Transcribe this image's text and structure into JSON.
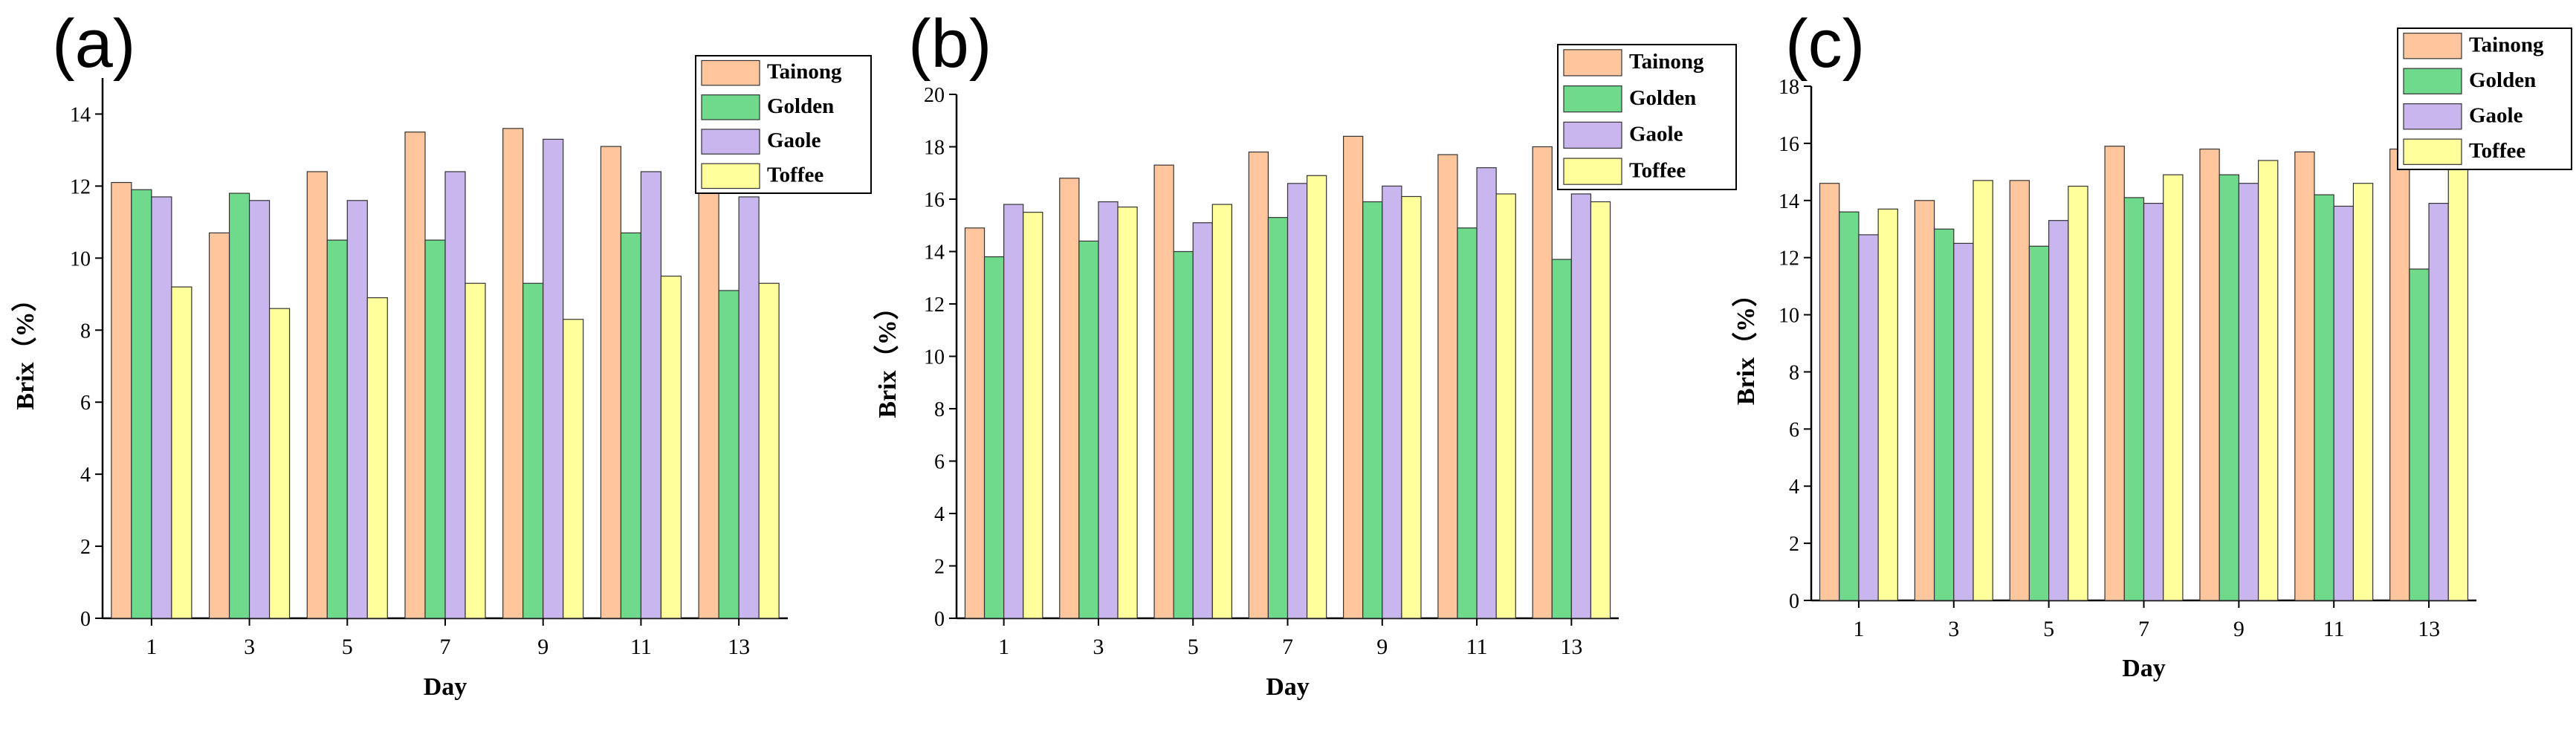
{
  "colors": {
    "Tainong": "#ffc69e",
    "Golden": "#6fd98c",
    "Gaole": "#c9b6ef",
    "Toffee": "#ffff9c",
    "axis": "#000000",
    "bar_outline": "#333333"
  },
  "chart_data": [
    {
      "type": "bar",
      "panel_label": "(a)",
      "categories": [
        "1",
        "3",
        "5",
        "7",
        "9",
        "11",
        "13"
      ],
      "xlabel": "Day",
      "ylabel": "Brix（%）",
      "ylim": [
        0,
        15
      ],
      "yticks": [
        0,
        2,
        4,
        6,
        8,
        10,
        12,
        14
      ],
      "ytick_labels": [
        "0",
        "2",
        "4",
        "6",
        "8",
        "10",
        "12",
        "14"
      ],
      "legend_position": "top-right",
      "series": [
        {
          "name": "Tainong",
          "values": [
            12.1,
            10.7,
            12.4,
            13.5,
            13.6,
            13.1,
            11.9
          ]
        },
        {
          "name": "Golden",
          "values": [
            11.9,
            11.8,
            10.5,
            10.5,
            9.3,
            10.7,
            9.1
          ]
        },
        {
          "name": "Gaole",
          "values": [
            11.7,
            11.6,
            11.6,
            12.4,
            13.3,
            12.4,
            11.7
          ]
        },
        {
          "name": "Toffee",
          "values": [
            9.2,
            8.6,
            8.9,
            9.3,
            8.3,
            9.5,
            9.3
          ]
        }
      ]
    },
    {
      "type": "bar",
      "panel_label": "(b)",
      "categories": [
        "1",
        "3",
        "5",
        "7",
        "9",
        "11",
        "13"
      ],
      "xlabel": "Day",
      "ylabel": "Brix（%）",
      "ylim": [
        0,
        20
      ],
      "yticks": [
        0,
        2,
        4,
        6,
        8,
        10,
        12,
        14,
        16,
        18,
        20
      ],
      "ytick_labels": [
        "0",
        "2",
        "4",
        "6",
        "8",
        "10",
        "12",
        "14",
        "16",
        "18",
        "20"
      ],
      "legend_position": "top-right",
      "series": [
        {
          "name": "Tainong",
          "values": [
            14.9,
            16.8,
            17.3,
            17.8,
            18.4,
            17.7,
            18.0
          ]
        },
        {
          "name": "Golden",
          "values": [
            13.8,
            14.4,
            14.0,
            15.3,
            15.9,
            14.9,
            13.7
          ]
        },
        {
          "name": "Gaole",
          "values": [
            15.8,
            15.9,
            15.1,
            16.6,
            16.5,
            17.2,
            16.2
          ]
        },
        {
          "name": "Toffee",
          "values": [
            15.5,
            15.7,
            15.8,
            16.9,
            16.1,
            16.2,
            15.9
          ]
        }
      ]
    },
    {
      "type": "bar",
      "panel_label": "(c)",
      "categories": [
        "1",
        "3",
        "5",
        "7",
        "9",
        "11",
        "13"
      ],
      "xlabel": "Day",
      "ylabel": "Brix（%）",
      "ylim": [
        0,
        18
      ],
      "yticks": [
        0,
        2,
        4,
        6,
        8,
        10,
        12,
        14,
        16,
        18
      ],
      "ytick_labels": [
        "0",
        "2",
        "4",
        "6",
        "8",
        "10",
        "12",
        "14",
        "16",
        "18"
      ],
      "legend_position": "top-right",
      "series": [
        {
          "name": "Tainong",
          "values": [
            14.6,
            14.0,
            14.7,
            15.9,
            15.8,
            15.7,
            15.8
          ]
        },
        {
          "name": "Golden",
          "values": [
            13.6,
            13.0,
            12.4,
            14.1,
            14.9,
            14.2,
            11.6
          ]
        },
        {
          "name": "Gaole",
          "values": [
            12.8,
            12.5,
            13.3,
            13.9,
            14.6,
            13.8,
            13.9
          ]
        },
        {
          "name": "Toffee",
          "values": [
            13.7,
            14.7,
            14.5,
            14.9,
            15.4,
            14.6,
            15.2
          ]
        }
      ]
    }
  ]
}
